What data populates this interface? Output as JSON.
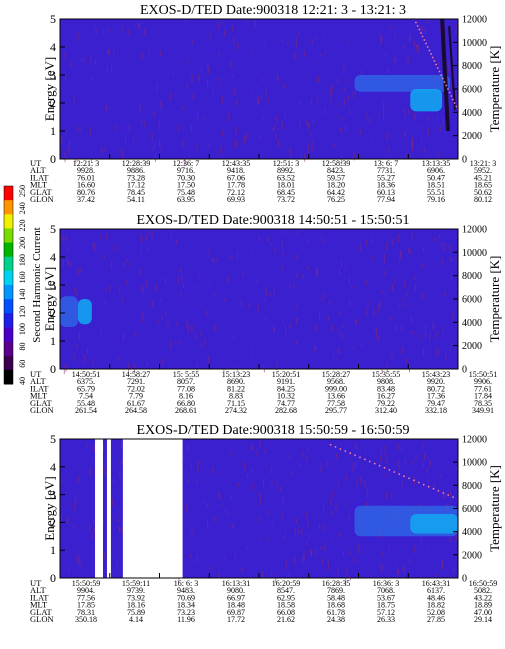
{
  "colorbar": {
    "label": "Second Harmonic Current",
    "ticks": [
      "40",
      "60",
      "80",
      "100",
      "120",
      "140",
      "160",
      "180",
      "200",
      "220",
      "240",
      "250"
    ],
    "colors": [
      "#000000",
      "#3c0050",
      "#5a008c",
      "#4b00c8",
      "#1e1ee6",
      "#0050ff",
      "#0096ff",
      "#00d2f0",
      "#00d28c",
      "#00b400",
      "#78dc00",
      "#f0f000",
      "#ff9600",
      "#ff0000"
    ]
  },
  "colors": {
    "background": "#3a20cf",
    "noise": "#8a2a7a",
    "enhanced": "#2f6be8",
    "strong": "#14a3f0",
    "dropout": "#ffffff",
    "dark": "#1a0a30",
    "temperature_dots": "#ff7a9a"
  },
  "chart_data": [
    {
      "type": "heatmap",
      "title": "EXOS-D/TED   Date:900318   12:21: 3 - 13:21: 3",
      "xlabel": "",
      "ylabel": "Energy [eV]",
      "ylabel_right": "Temperature [K]",
      "ylim": [
        0,
        5
      ],
      "yticks": [
        "0",
        "1",
        "2",
        "3",
        "4",
        "5"
      ],
      "ylim_right": [
        0,
        12000
      ],
      "yticks_right": [
        "0",
        "2000",
        "4000",
        "6000",
        "8000",
        "10000",
        "12000"
      ],
      "orbit_labels": [
        "UT",
        "ALT",
        "ILAT",
        "MLT",
        "GLAT",
        "GLON"
      ],
      "orbit_columns": [
        [
          "12:21: 3",
          "9928.",
          "76.01",
          "16.60",
          "80.76",
          "37.42"
        ],
        [
          "12:28:39",
          "9886.",
          "73.28",
          "17.12",
          "78.45",
          "54.11"
        ],
        [
          "12:36: 7",
          "9716.",
          "70.30",
          "17.50",
          "75.48",
          "63.95"
        ],
        [
          "12:43:35",
          "9418.",
          "67.06",
          "17.78",
          "72.12",
          "69.93"
        ],
        [
          "12:51: 3",
          "8992.",
          "63.52",
          "18.01",
          "68.45",
          "73.72"
        ],
        [
          "12:58:39",
          "8423.",
          "59.57",
          "18.20",
          "64.42",
          "76.25"
        ],
        [
          "13: 6: 7",
          "7731.",
          "55.27",
          "18.36",
          "60.13",
          "77.94"
        ],
        [
          "13:13:35",
          "6906.",
          "50.47",
          "18.51",
          "55.51",
          "79.16"
        ],
        [
          "13:21: 3",
          "5952.",
          "45.21",
          "18.65",
          "50.62",
          "80.12"
        ]
      ],
      "features": [
        {
          "kind": "enhanced",
          "t": [
            0.74,
            0.98
          ],
          "energy": [
            2.4,
            3.0
          ]
        },
        {
          "kind": "strong",
          "t": [
            0.88,
            0.96
          ],
          "energy": [
            1.7,
            2.5
          ]
        },
        {
          "kind": "dark",
          "t": [
            0.94,
            0.99
          ],
          "energy": [
            1.0,
            5.0
          ]
        }
      ],
      "temperature_trace": {
        "t": [
          0.89,
          1.0
        ],
        "temperature": [
          12000,
          4200
        ]
      }
    },
    {
      "type": "heatmap",
      "title": "EXOS-D/TED   Date:900318   14:50:51 - 15:50:51",
      "xlabel": "",
      "ylabel": "Energy [eV]",
      "ylabel_right": "Temperature [K]",
      "ylim": [
        0,
        5
      ],
      "yticks": [
        "0",
        "1",
        "2",
        "3",
        "4",
        "5"
      ],
      "ylim_right": [
        0,
        12000
      ],
      "yticks_right": [
        "0",
        "2000",
        "4000",
        "6000",
        "8000",
        "10000",
        "12000"
      ],
      "orbit_labels": [
        "UT",
        "ALT",
        "ILAT",
        "MLT",
        "GLAT",
        "GLON"
      ],
      "orbit_columns": [
        [
          "14:50:51",
          "6375.",
          "65.79",
          "7.54",
          "55.48",
          "261.54"
        ],
        [
          "14:58:27",
          "7291.",
          "72.02",
          "7.79",
          "61.67",
          "264.58"
        ],
        [
          "15: 5:55",
          "8057.",
          "77.08",
          "8.16",
          "66.80",
          "268.61"
        ],
        [
          "15:13:23",
          "8690.",
          "81.22",
          "8.83",
          "71.15",
          "274.32"
        ],
        [
          "15:20:51",
          "9191.",
          "84.25",
          "10.32",
          "74.77",
          "282.68"
        ],
        [
          "15:28:27",
          "9568.",
          "999.00",
          "13.66",
          "77.58",
          "295.77"
        ],
        [
          "15:35:55",
          "9808.",
          "83.48",
          "16.27",
          "79.22",
          "312.40"
        ],
        [
          "15:43:23",
          "9920.",
          "80.72",
          "17.36",
          "79.47",
          "332.18"
        ],
        [
          "15:50:51",
          "9906.",
          "77.61",
          "17.84",
          "78.35",
          "349.91"
        ]
      ],
      "features": [
        {
          "kind": "enhanced",
          "t": [
            0.0,
            0.045
          ],
          "energy": [
            1.5,
            2.6
          ]
        },
        {
          "kind": "strong",
          "t": [
            0.045,
            0.08
          ],
          "energy": [
            1.6,
            2.5
          ]
        }
      ],
      "temperature_trace": null
    },
    {
      "type": "heatmap",
      "title": "EXOS-D/TED   Date:900318   15:50:59 - 16:50:59",
      "xlabel": "",
      "ylabel": "Energy [eV]",
      "ylabel_right": "Temperature [K]",
      "ylim": [
        0,
        5
      ],
      "yticks": [
        "0",
        "1",
        "2",
        "3",
        "4",
        "5"
      ],
      "ylim_right": [
        0,
        12000
      ],
      "yticks_right": [
        "0",
        "2000",
        "4000",
        "6000",
        "8000",
        "10000",
        "12000"
      ],
      "orbit_labels": [
        "UT",
        "ALT",
        "ILAT",
        "MLT",
        "GLAT",
        "GLON"
      ],
      "orbit_columns": [
        [
          "15:50:59",
          "9904.",
          "77.56",
          "17.85",
          "78.31",
          "350.18"
        ],
        [
          "15:59:11",
          "9739.",
          "73.92",
          "18.16",
          "75.89",
          "4.14"
        ],
        [
          "16: 6: 3",
          "9483.",
          "70.69",
          "18.34",
          "73.23",
          "11.96"
        ],
        [
          "16:13:31",
          "9080.",
          "66.97",
          "18.48",
          "69.87",
          "17.72"
        ],
        [
          "16:20:59",
          "8547.",
          "62.95",
          "18.58",
          "66.08",
          "21.62"
        ],
        [
          "16:28:35",
          "7869.",
          "58.48",
          "18.68",
          "61.78",
          "24.38"
        ],
        [
          "16:36: 3",
          "7068.",
          "53.67",
          "18.75",
          "57.12",
          "26.33"
        ],
        [
          "16:43:31",
          "6137.",
          "48.46",
          "18.82",
          "52.08",
          "27.85"
        ],
        [
          "16:50:59",
          "5082.",
          "43.22",
          "18.89",
          "47.00",
          "29.14"
        ]
      ],
      "features": [
        {
          "kind": "enhanced",
          "t": [
            0.74,
            1.0
          ],
          "energy": [
            1.5,
            2.6
          ]
        },
        {
          "kind": "strong",
          "t": [
            0.88,
            1.0
          ],
          "energy": [
            1.6,
            2.3
          ]
        }
      ],
      "dropouts": [
        [
          0.088,
          0.108
        ],
        [
          0.118,
          0.128
        ],
        [
          0.158,
          0.308
        ]
      ],
      "temperature_trace": {
        "t": [
          0.68,
          1.0
        ],
        "temperature": [
          11500,
          6800
        ]
      }
    }
  ]
}
